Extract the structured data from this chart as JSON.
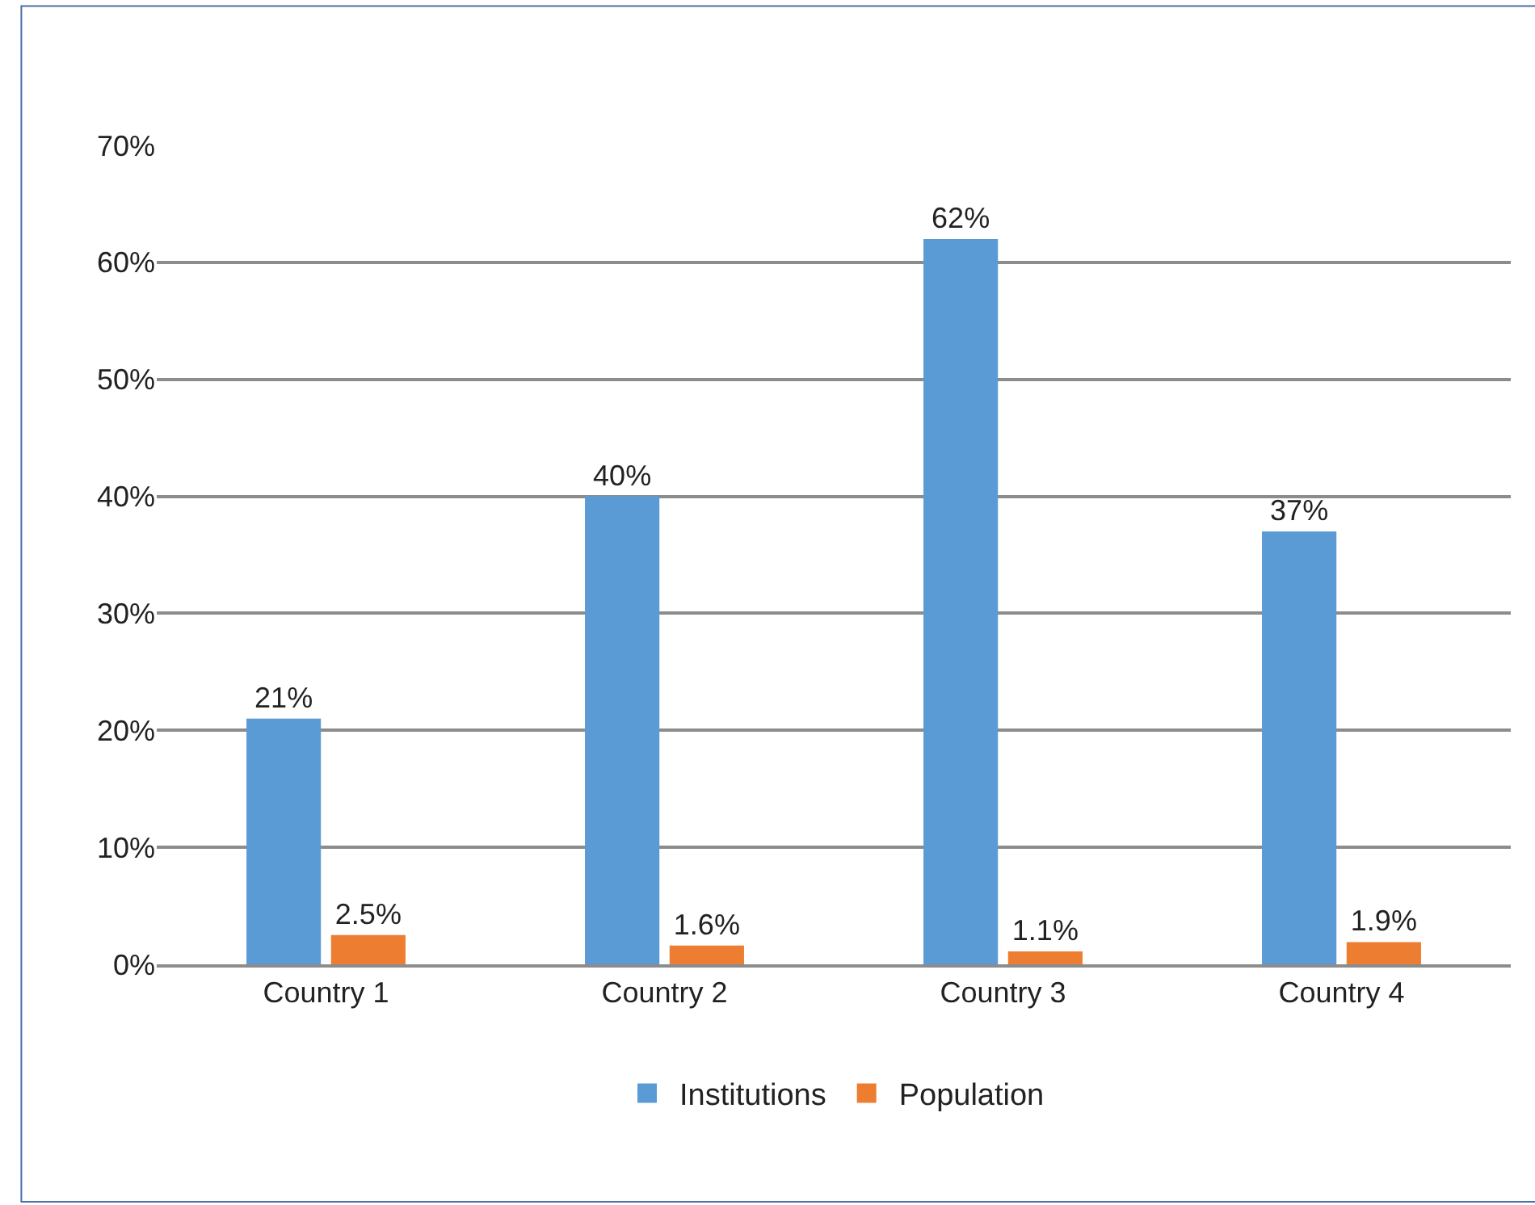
{
  "chart_data": {
    "type": "bar",
    "categories": [
      "Country 1",
      "Country 2",
      "Country 3",
      "Country 4"
    ],
    "series": [
      {
        "name": "Institutions",
        "color": "#5b9bd5",
        "values": [
          21,
          40,
          62,
          37
        ],
        "value_labels": [
          "21%",
          "40%",
          "62%",
          "37%"
        ]
      },
      {
        "name": "Population",
        "color": "#ed7d31",
        "values": [
          2.5,
          1.6,
          1.1,
          1.9
        ],
        "value_labels": [
          "2.5%",
          "1.6%",
          "1.1%",
          "1.9%"
        ]
      }
    ],
    "ylim": [
      0,
      70
    ],
    "yticks": [
      {
        "value": 0,
        "label": "0%"
      },
      {
        "value": 10,
        "label": "10%"
      },
      {
        "value": 20,
        "label": "20%"
      },
      {
        "value": 30,
        "label": "30%"
      },
      {
        "value": 40,
        "label": "40%"
      },
      {
        "value": 50,
        "label": "50%"
      },
      {
        "value": 60,
        "label": "60%"
      },
      {
        "value": 70,
        "label": "70%"
      }
    ],
    "grid": "y",
    "legend": "bottom"
  }
}
